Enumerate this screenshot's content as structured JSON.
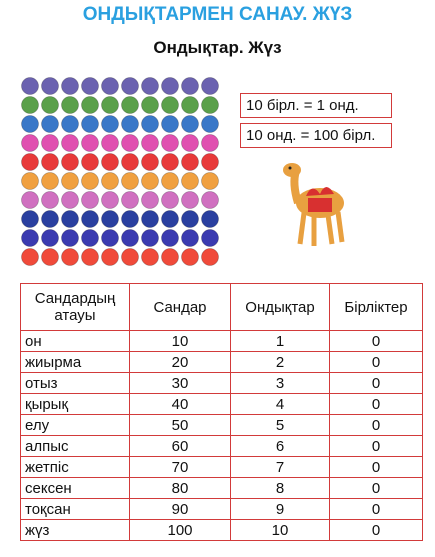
{
  "header": {
    "title": "ОНДЫҚТАРМЕН САНАУ. ЖҮЗ",
    "subtitle": "Ондықтар. Жүз"
  },
  "rules": [
    "10 бірл. = 1 онд.",
    "10 онд. = 100 бірл."
  ],
  "table": {
    "header": [
      "Сандардың атауы",
      "Сандар",
      "Ондықтар",
      "Бірліктер"
    ],
    "rows": [
      [
        "он",
        10,
        1,
        0
      ],
      [
        "жиырма",
        20,
        2,
        0
      ],
      [
        "отыз",
        30,
        3,
        0
      ],
      [
        "қырық",
        40,
        4,
        0
      ],
      [
        "елу",
        50,
        5,
        0
      ],
      [
        "алпыс",
        60,
        6,
        0
      ],
      [
        "жетпіс",
        70,
        7,
        0
      ],
      [
        "сексен",
        80,
        8,
        0
      ],
      [
        "тоқсан",
        90,
        9,
        0
      ],
      [
        "жүз",
        100,
        10,
        0
      ]
    ]
  }
}
